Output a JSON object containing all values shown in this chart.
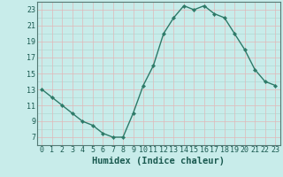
{
  "x": [
    0,
    1,
    2,
    3,
    4,
    5,
    6,
    7,
    8,
    9,
    10,
    11,
    12,
    13,
    14,
    15,
    16,
    17,
    18,
    19,
    20,
    21,
    22,
    23
  ],
  "y": [
    13,
    12,
    11,
    10,
    9,
    8.5,
    7.5,
    7,
    7,
    10,
    13.5,
    16,
    20,
    22,
    23.5,
    23,
    23.5,
    22.5,
    22,
    20,
    18,
    15.5,
    14,
    13.5
  ],
  "line_color": "#2d7a68",
  "marker_color": "#2d7a68",
  "bg_color": "#c8ecea",
  "grid_color_pink": "#e0b8b8",
  "grid_color_teal": "#b0d8d4",
  "axis_bg": "#ccecea",
  "xlabel": "Humidex (Indice chaleur)",
  "ylim": [
    6,
    24
  ],
  "xlim": [
    -0.5,
    23.5
  ],
  "yticks": [
    7,
    9,
    11,
    13,
    15,
    17,
    19,
    21,
    23
  ],
  "xticks": [
    0,
    1,
    2,
    3,
    4,
    5,
    6,
    7,
    8,
    9,
    10,
    11,
    12,
    13,
    14,
    15,
    16,
    17,
    18,
    19,
    20,
    21,
    22,
    23
  ],
  "font_color": "#1a5a50",
  "xlabel_fontsize": 7.5,
  "tick_fontsize": 6,
  "line_width": 1.0,
  "marker_size": 2.2,
  "spine_color": "#557a74"
}
